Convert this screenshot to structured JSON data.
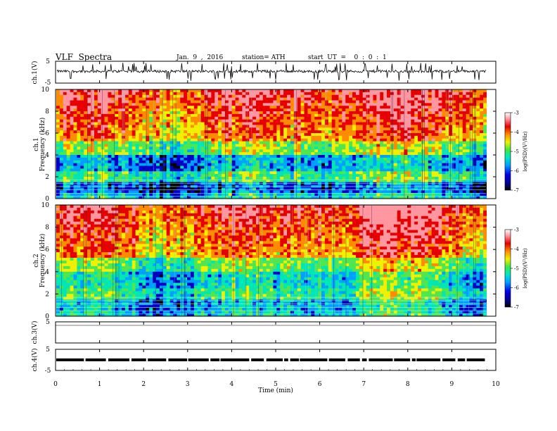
{
  "header": {
    "title": "VLF  Spectra",
    "date": "Jan.  9  ,  2016",
    "station": "station= ATH",
    "start": "start  UT  =    0  :  0  :  1"
  },
  "chart_data": [
    {
      "type": "line",
      "title": "",
      "ylabel": "ch.1(V)",
      "ylim": [
        -5,
        5
      ],
      "yticks": [
        "5",
        "-5"
      ],
      "xlim": [
        0,
        10
      ],
      "note": "noisy waveform fluctuating mostly between about -0.5 and 1 V"
    },
    {
      "type": "heatmap",
      "ylabel": "Frequency  (kHz)",
      "channel_label": "ch.1",
      "ylim": [
        0,
        10
      ],
      "yticks": [
        "0",
        "2",
        "4",
        "6",
        "8",
        "10"
      ],
      "xlim": [
        0,
        10
      ],
      "colorbar": {
        "label": "log(PSD)(V²/Hz)",
        "range": [
          -7,
          -3
        ],
        "ticks": [
          "-3",
          "-4",
          "-5",
          "-6",
          "-7"
        ]
      }
    },
    {
      "type": "heatmap",
      "ylabel": "Frequency  (kHz)",
      "channel_label": "ch.2",
      "ylim": [
        0,
        10
      ],
      "yticks": [
        "0",
        "2",
        "4",
        "6",
        "8",
        "10"
      ],
      "xlim": [
        0,
        10
      ],
      "colorbar": {
        "label": "log(PSD)(V²/Hz)",
        "range": [
          -7,
          -3
        ],
        "ticks": [
          "-3",
          "-4",
          "-5",
          "-6",
          "-7"
        ]
      }
    },
    {
      "type": "line",
      "ylabel": "ch.3(V)",
      "ylim": [
        -5,
        5
      ],
      "yticks": [
        "5"
      ],
      "xlim": [
        0,
        10
      ]
    },
    {
      "type": "line",
      "ylabel": "ch.4(V)",
      "ylim": [
        -5,
        5
      ],
      "yticks": [
        "5",
        "-5"
      ],
      "xlim": [
        0,
        10
      ]
    }
  ],
  "x_axis": {
    "label": "Time  (min)",
    "ticks": [
      "0",
      "1",
      "2",
      "3",
      "4",
      "5",
      "6",
      "7",
      "8",
      "9",
      "10"
    ]
  },
  "colors": {
    "axis": "#000000",
    "colormap": [
      "#000000",
      "#0000c8",
      "#00a0ff",
      "#00e6b4",
      "#50e650",
      "#f0f000",
      "#ff8c00",
      "#e60000",
      "#ff96a0",
      "#ffffff"
    ]
  }
}
